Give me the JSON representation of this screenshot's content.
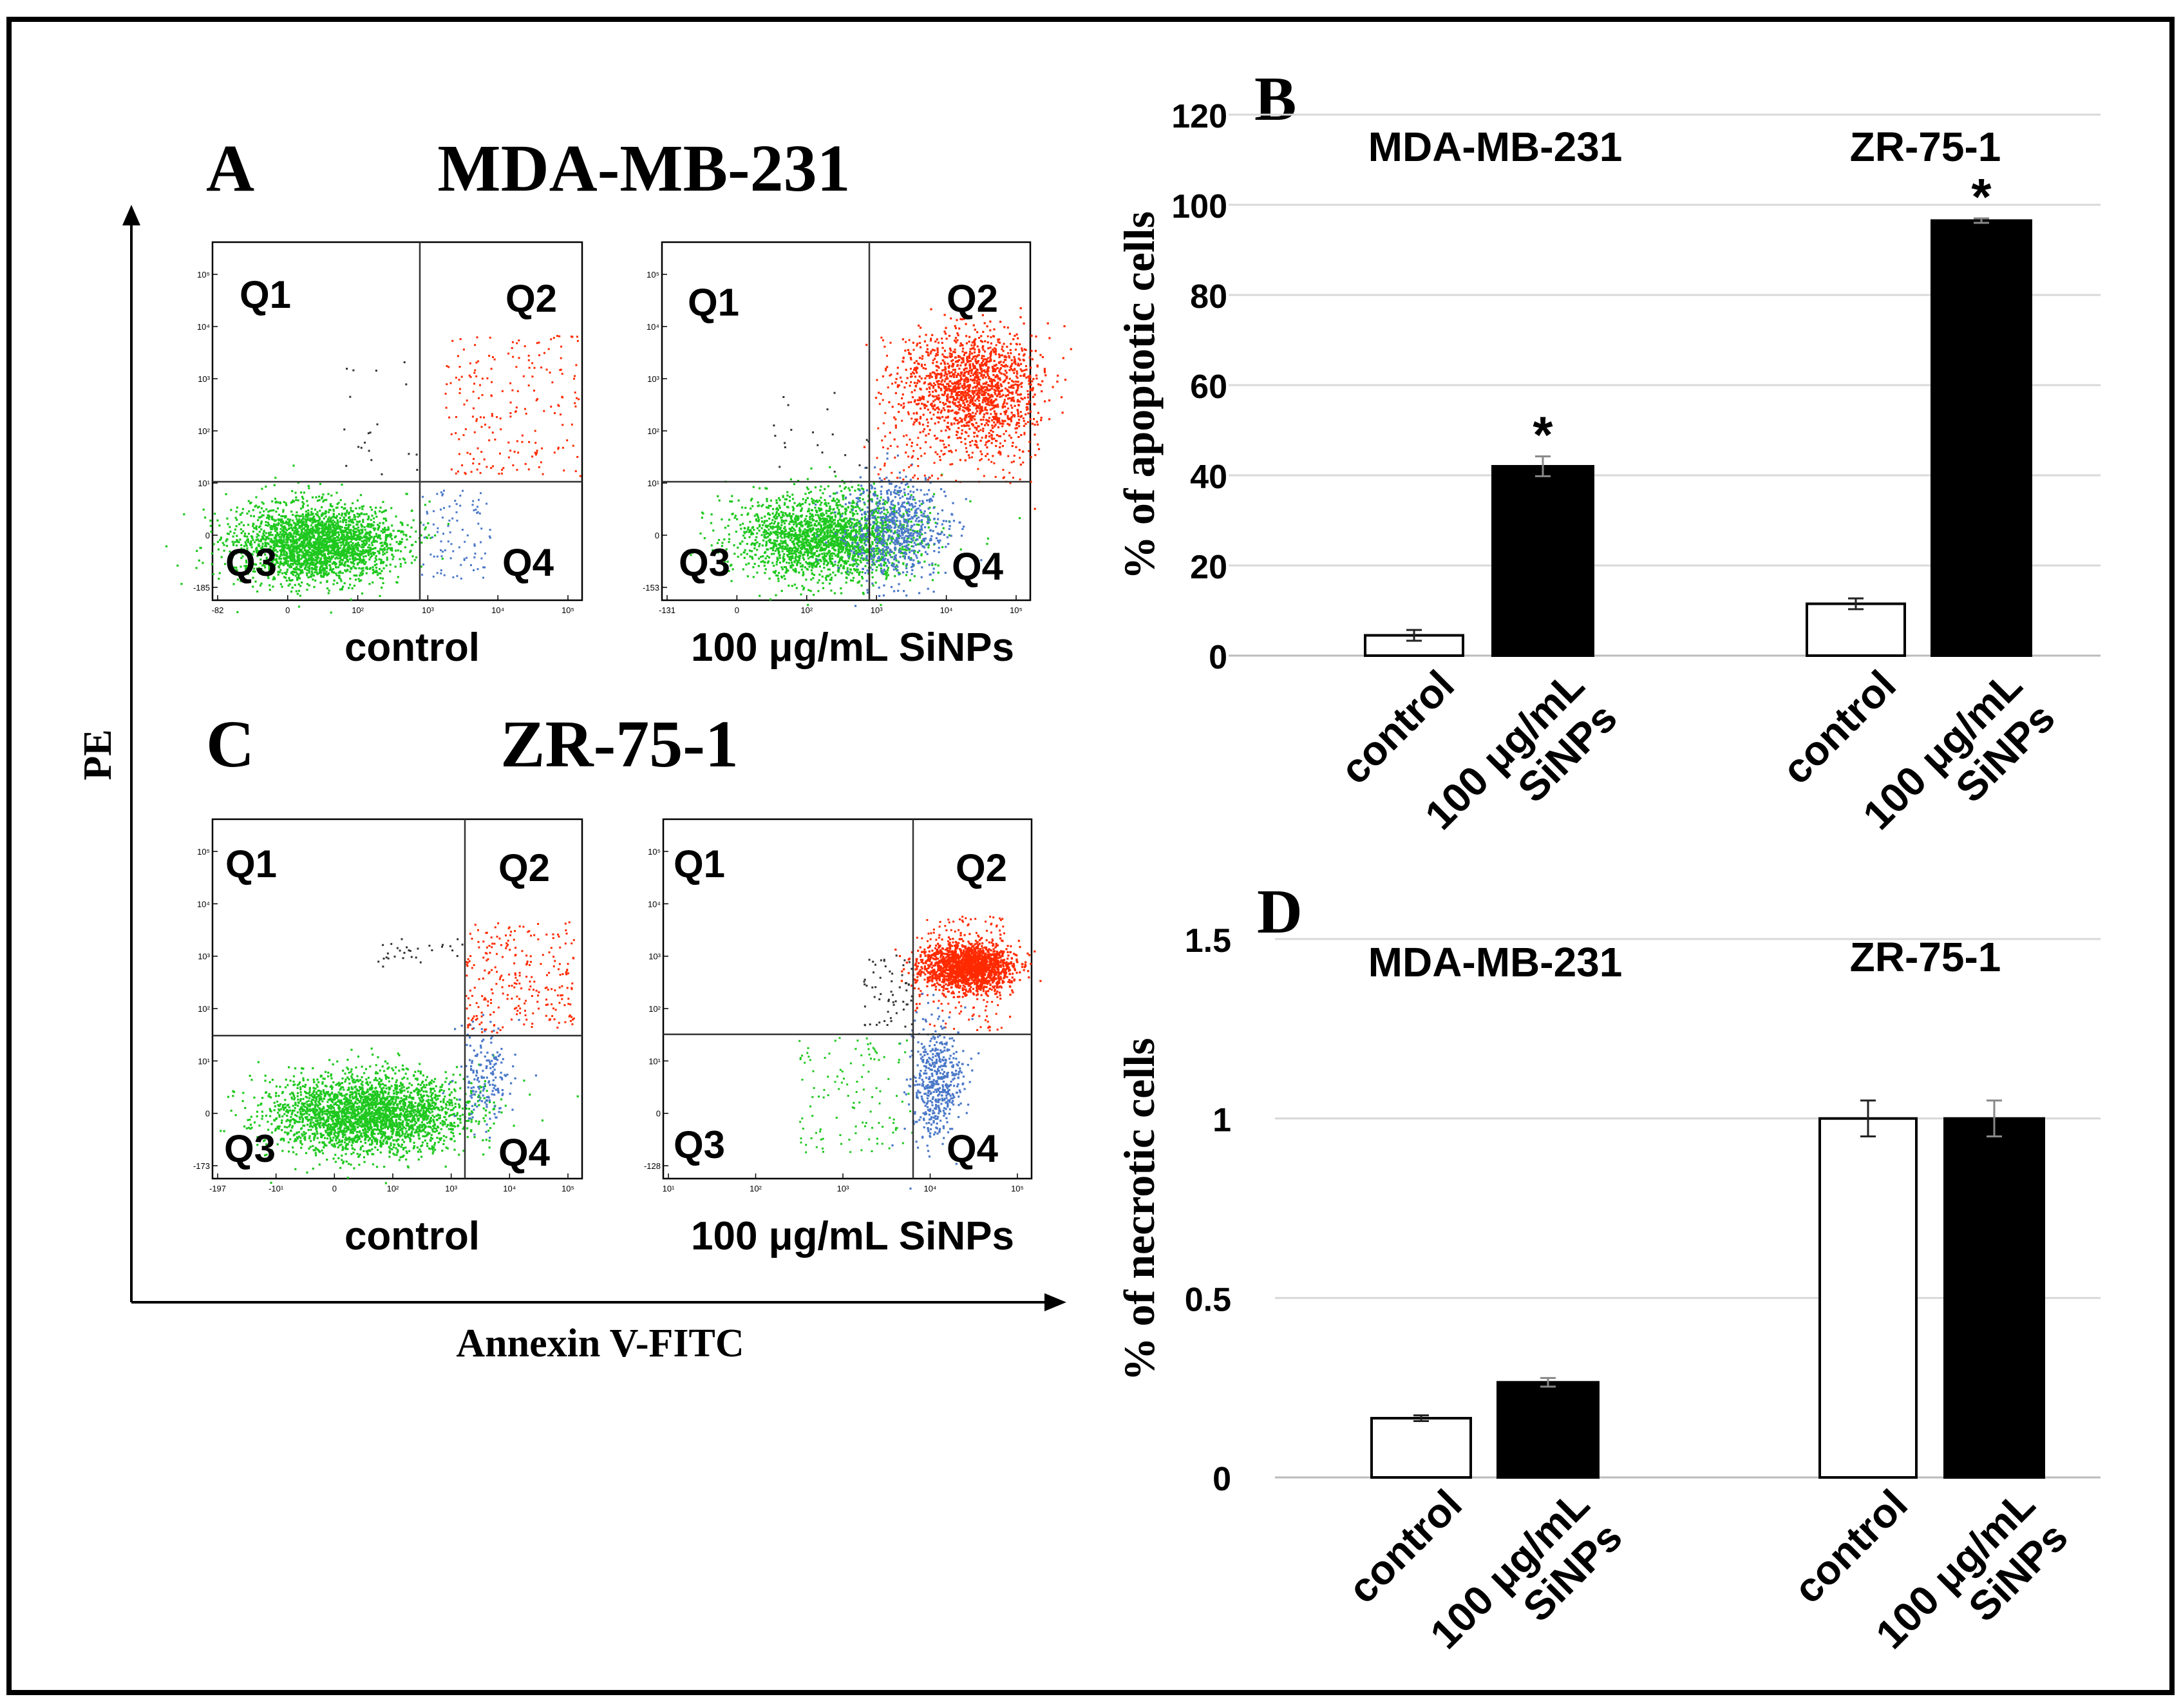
{
  "panel_letters": {
    "a": "A",
    "b": "B",
    "c": "C",
    "d": "D"
  },
  "flow": {
    "axis_y_label": "PE",
    "axis_x_label": "Annexin V-FITC",
    "quadrant_labels": [
      "Q1",
      "Q2",
      "Q3",
      "Q4"
    ],
    "rows": [
      {
        "title": "MDA-MB-231",
        "plots": [
          {
            "label": "control",
            "y_ticks": [
              "10⁵",
              "10⁴",
              "10³",
              "10²",
              "10¹",
              "0",
              "-185"
            ],
            "x_ticks": [
              "-82",
              "0",
              "10²",
              "10³",
              "10⁴",
              "10⁵"
            ]
          },
          {
            "label": "100 μg/mL SiNPs",
            "y_ticks": [
              "10⁵",
              "10⁴",
              "10³",
              "10²",
              "10¹",
              "0",
              "-153"
            ],
            "x_ticks": [
              "-131",
              "0",
              "10²",
              "10³",
              "10⁴",
              "10⁵"
            ]
          }
        ]
      },
      {
        "title": "ZR-75-1",
        "plots": [
          {
            "label": "control",
            "y_ticks": [
              "10⁵",
              "10⁴",
              "10³",
              "10²",
              "10¹",
              "0",
              "-173"
            ],
            "x_ticks": [
              "-197",
              "-10¹",
              "0",
              "10²",
              "10³",
              "10⁴",
              "10⁵"
            ]
          },
          {
            "label": "100 μg/mL SiNPs",
            "y_ticks": [
              "10⁵",
              "10⁴",
              "10³",
              "10²",
              "10¹",
              "0",
              "-128"
            ],
            "x_ticks": [
              "10¹",
              "10²",
              "10³",
              "10⁴",
              "10⁵"
            ]
          }
        ]
      }
    ]
  },
  "chart_data": [
    {
      "type": "bar",
      "title": "B",
      "ylabel": "% of apoptotic cells",
      "ylim": [
        0,
        120
      ],
      "yticks": [
        0,
        20,
        40,
        60,
        80,
        100,
        120
      ],
      "grid": true,
      "groups": [
        {
          "name": "MDA-MB-231",
          "bars": [
            {
              "category": "control",
              "value": 4.5,
              "error": 1.2,
              "fill": "#ffffff",
              "star": ""
            },
            {
              "category": "100 μg/mL SiNPs",
              "value": 42,
              "error": 2.2,
              "fill": "#000000",
              "star": "*"
            }
          ]
        },
        {
          "name": "ZR-75-1",
          "bars": [
            {
              "category": "control",
              "value": 11.5,
              "error": 1.2,
              "fill": "#ffffff",
              "star": ""
            },
            {
              "category": "100 μg/mL SiNPs",
              "value": 96.5,
              "error": 0.5,
              "fill": "#000000",
              "star": "*"
            }
          ]
        }
      ]
    },
    {
      "type": "bar",
      "title": "D",
      "ylabel": "% of necrotic cells",
      "ylim": [
        0,
        1.5
      ],
      "yticks": [
        0,
        0.5,
        1,
        1.5
      ],
      "grid": true,
      "groups": [
        {
          "name": "MDA-MB-231",
          "bars": [
            {
              "category": "control",
              "value": 0.165,
              "error": 0.008,
              "fill": "#ffffff",
              "star": ""
            },
            {
              "category": "100 μg/mL SiNPs",
              "value": 0.265,
              "error": 0.012,
              "fill": "#000000",
              "star": ""
            }
          ]
        },
        {
          "name": "ZR-75-1",
          "bars": [
            {
              "category": "control",
              "value": 1.0,
              "error": 0.05,
              "fill": "#ffffff",
              "star": ""
            },
            {
              "category": "100 μg/mL SiNPs",
              "value": 1.0,
              "error": 0.05,
              "fill": "#000000",
              "star": ""
            }
          ]
        }
      ]
    }
  ],
  "colors": {
    "live": "#1ec81e",
    "early": "#4a78c8",
    "late": "#ff2a00",
    "necrotic": "#333333",
    "grid": "#d8d8d8",
    "frame": "#000000"
  }
}
